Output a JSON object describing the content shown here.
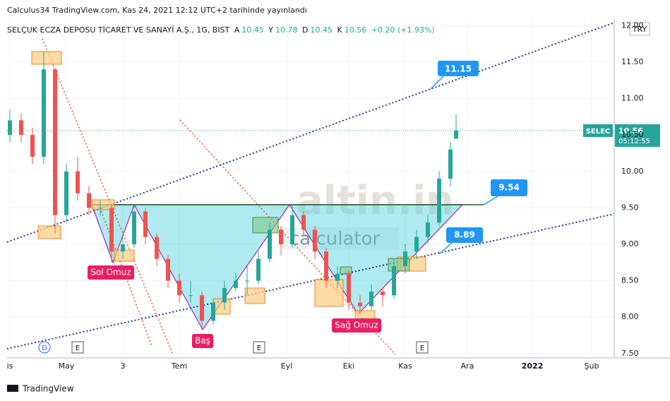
{
  "header": {
    "published": "Calculus34 TradingView.com, Kas 24, 2021 12:12 UTC+2 tarihinde yayınlandı",
    "symbol": "SELÇUK ECZA DEPOSU TİCARET VE SANAYİ A.Ş., 1G, BIST",
    "ohlc": [
      "A",
      "10.45",
      "Y",
      "10.78",
      "D",
      "10.45",
      "K",
      "10.56",
      "+0.20 (+1.93%)"
    ]
  },
  "chart_data": {
    "type": "candlestick",
    "currency": "TRY",
    "x": [
      0,
      4,
      8,
      12,
      16,
      20,
      24,
      28,
      32,
      36,
      40,
      44,
      48,
      52,
      56,
      60,
      64,
      68,
      72,
      76,
      80,
      84,
      88,
      92,
      96,
      100,
      104,
      108,
      112,
      116,
      120,
      124,
      128,
      132,
      136,
      140,
      144,
      148,
      152,
      156,
      158
    ],
    "open": [
      10.5,
      10.7,
      10.5,
      10.2,
      11.4,
      9.4,
      10.0,
      9.7,
      9.5,
      9.5,
      8.9,
      9.0,
      9.45,
      9.1,
      8.8,
      8.5,
      8.3,
      8.3,
      7.95,
      8.2,
      8.4,
      8.5,
      8.5,
      8.8,
      9.2,
      9.0,
      9.4,
      9.2,
      8.9,
      8.5,
      8.6,
      8.2,
      8.15,
      8.35,
      8.3,
      8.7,
      8.9,
      9.1,
      9.3,
      9.9,
      10.45
    ],
    "high": [
      10.85,
      10.8,
      10.6,
      11.65,
      11.4,
      10.1,
      10.2,
      9.8,
      9.6,
      9.55,
      9.1,
      9.55,
      9.5,
      9.15,
      8.85,
      8.6,
      8.5,
      8.35,
      8.25,
      8.5,
      8.6,
      8.7,
      8.9,
      9.3,
      9.25,
      9.55,
      9.45,
      9.25,
      8.95,
      8.7,
      8.65,
      8.3,
      8.45,
      8.4,
      8.8,
      9.0,
      9.2,
      9.4,
      10.0,
      10.4,
      10.78
    ],
    "low": [
      10.4,
      10.4,
      10.1,
      10.1,
      9.15,
      9.3,
      9.6,
      9.4,
      9.4,
      8.75,
      8.8,
      8.95,
      9.0,
      8.7,
      8.4,
      8.2,
      8.2,
      7.85,
      7.9,
      8.1,
      8.35,
      8.3,
      8.45,
      8.75,
      8.85,
      8.95,
      9.1,
      8.8,
      8.4,
      8.4,
      8.1,
      8.05,
      8.1,
      8.15,
      8.25,
      8.6,
      8.8,
      9.0,
      9.25,
      9.8,
      10.45
    ],
    "close": [
      10.7,
      10.5,
      10.2,
      11.4,
      9.4,
      10.0,
      9.7,
      9.5,
      9.5,
      8.9,
      9.0,
      9.45,
      9.1,
      8.8,
      8.5,
      8.3,
      8.3,
      7.95,
      8.2,
      8.4,
      8.5,
      8.5,
      8.8,
      9.2,
      9.0,
      9.4,
      9.2,
      8.9,
      8.5,
      8.6,
      8.2,
      8.15,
      8.35,
      8.3,
      8.7,
      8.9,
      9.1,
      9.3,
      9.9,
      10.3,
      10.56
    ],
    "up_color": "#26a69a",
    "down_color": "#ef5350",
    "xlim": [
      -1,
      214
    ],
    "xticks": [
      {
        "value": 0,
        "label": "is"
      },
      {
        "value": 20,
        "label": "May"
      },
      {
        "value": 40,
        "label": "3"
      },
      {
        "value": 60,
        "label": "Tem"
      },
      {
        "value": 98,
        "label": "Eyl"
      },
      {
        "value": 120,
        "label": "Eki"
      },
      {
        "value": 140,
        "label": "Kas"
      },
      {
        "value": 162,
        "label": "Ara"
      },
      {
        "value": 185,
        "label": "2022"
      },
      {
        "value": 206,
        "label": "Şub"
      }
    ],
    "ylim": [
      7.44,
      12.1
    ],
    "yticks": [
      {
        "value": 7.5,
        "label": "7.50"
      },
      {
        "value": 8,
        "label": "8.00"
      },
      {
        "value": 8.5,
        "label": "8.50"
      },
      {
        "value": 9,
        "label": "9.00"
      },
      {
        "value": 9.5,
        "label": "9.50"
      },
      {
        "value": 10,
        "label": "10.00"
      },
      {
        "value": 10.5,
        "label": "10.50"
      },
      {
        "value": 11,
        "label": "11.00"
      },
      {
        "value": 11.5,
        "label": "11.50"
      },
      {
        "value": 12,
        "label": "12.00"
      }
    ],
    "grid": true,
    "price_tag": {
      "symbol": "SELEC",
      "price": "10.56",
      "countdown": "05:12:55"
    },
    "annotations": [
      "11.15",
      "9.54",
      "8.89",
      "Sol Omuz",
      "Baş",
      "Sağ Omuz"
    ],
    "events": [
      "D",
      "E",
      "E",
      "E"
    ],
    "watermark": [
      "altin.in",
      "calculator"
    ]
  },
  "footer": "TradingView"
}
